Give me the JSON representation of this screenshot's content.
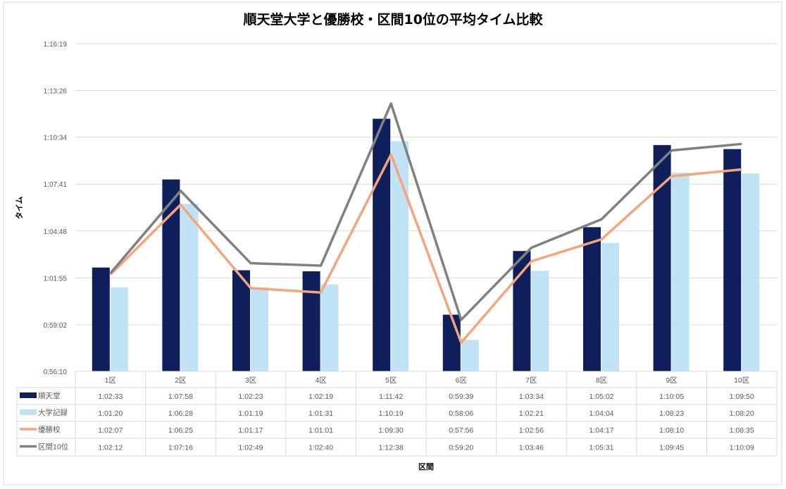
{
  "chart_data": {
    "type": "bar",
    "title": "順天堂大学と優勝校・区間10位の平均タイム比較",
    "xlabel": "区間",
    "ylabel": "タイム",
    "ylim": [
      "0:56:10",
      "1:16:19"
    ],
    "yticks": [
      "0:56:10",
      "0:59:02",
      "1:01:55",
      "1:04:48",
      "1:07:41",
      "1:10:34",
      "1:13:26",
      "1:16:19"
    ],
    "grid": true,
    "legend": "data-table",
    "categories": [
      "1区",
      "2区",
      "3区",
      "4区",
      "5区",
      "6区",
      "7区",
      "8区",
      "9区",
      "10区"
    ],
    "series": [
      {
        "name": "順天堂",
        "kind": "bar",
        "color": "#0e1f5b",
        "values": [
          "1:02:33",
          "1:07:58",
          "1:02:23",
          "1:02:19",
          "1:11:42",
          "0:59:39",
          "1:03:34",
          "1:05:02",
          "1:10:05",
          "1:09:50"
        ]
      },
      {
        "name": "大学記録",
        "kind": "bar",
        "color": "#bfe3f5",
        "values": [
          "1:01:20",
          "1:06:28",
          "1:01:19",
          "1:01:31",
          "1:10:19",
          "0:58:06",
          "1:02:21",
          "1:04:04",
          "1:08:23",
          "1:08:20"
        ]
      },
      {
        "name": "優勝校",
        "kind": "line",
        "color": "#f4a57c",
        "values": [
          "1:02:07",
          "1:06:25",
          "1:01:17",
          "1:01:01",
          "1:09:30",
          "0:57:56",
          "1:02:56",
          "1:04:17",
          "1:08:10",
          "1:08:35"
        ]
      },
      {
        "name": "区間10位",
        "kind": "line",
        "color": "#808080",
        "values": [
          "1:02:12",
          "1:07:16",
          "1:02:49",
          "1:02:40",
          "1:12:38",
          "0:59:20",
          "1:03:46",
          "1:05:31",
          "1:09:45",
          "1:10:09"
        ]
      }
    ]
  }
}
